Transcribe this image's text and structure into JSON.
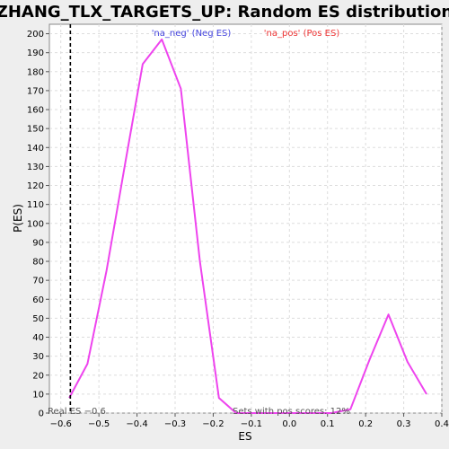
{
  "chart_data": {
    "type": "line",
    "title": "ZHANG_TLX_TARGETS_UP: Random ES distribution",
    "xlabel": "ES",
    "ylabel": "P(ES)",
    "xlim": [
      -0.63,
      0.4
    ],
    "ylim": [
      0,
      205
    ],
    "x_ticks": [
      -0.6,
      -0.5,
      -0.4,
      -0.3,
      -0.2,
      -0.1,
      0.0,
      0.1,
      0.2,
      0.3,
      0.4
    ],
    "x_tick_labels": [
      "−0.6",
      "−0.5",
      "−0.4",
      "−0.3",
      "−0.2",
      "−0.1",
      "0.0",
      "0.1",
      "0.2",
      "0.3",
      "0.4"
    ],
    "y_ticks": [
      0,
      10,
      20,
      30,
      40,
      50,
      60,
      70,
      80,
      90,
      100,
      110,
      120,
      130,
      140,
      150,
      160,
      170,
      180,
      190,
      200
    ],
    "y_tick_labels": [
      "0",
      "10",
      "20",
      "30",
      "40",
      "50",
      "60",
      "70",
      "80",
      "90",
      "100",
      "110",
      "120",
      "130",
      "140",
      "150",
      "160",
      "170",
      "180",
      "190",
      "200"
    ],
    "grid": true,
    "series": [
      {
        "color": "#ee44ee",
        "x": [
          -0.578,
          -0.53,
          -0.48,
          -0.43,
          -0.385,
          -0.335,
          -0.285,
          -0.235,
          -0.185,
          -0.14,
          -0.09,
          -0.04,
          0.01,
          0.06,
          0.11,
          0.16,
          0.21,
          0.26,
          0.31,
          0.36
        ],
        "y": [
          8,
          26,
          75,
          133,
          184,
          197,
          171,
          80,
          8,
          0,
          0,
          0,
          0,
          0,
          0,
          2,
          28,
          52,
          27,
          10
        ]
      }
    ],
    "reference_line": {
      "x": -0.575,
      "style": "dashed",
      "color": "#000000"
    },
    "legend": [
      {
        "label": "'na_neg' (Neg ES)",
        "color": "#4444dd"
      },
      {
        "label": "'na_pos' (Pos ES)",
        "color": "#ee3333"
      }
    ],
    "legend_placement": "top",
    "annotations": {
      "real_es": "Real ES −0.6",
      "pos_scores": "Sets with pos scores: 12%"
    }
  }
}
